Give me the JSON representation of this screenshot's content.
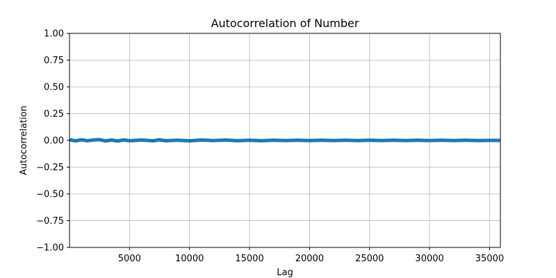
{
  "chart_data": {
    "type": "line",
    "title": "Autocorrelation of Number",
    "xlabel": "Lag",
    "ylabel": "Autocorrelation",
    "xlim": [
      1,
      35900
    ],
    "ylim": [
      -1.0,
      1.0
    ],
    "xticks": [
      5000,
      10000,
      15000,
      20000,
      25000,
      30000,
      35000
    ],
    "yticks": [
      1.0,
      0.75,
      0.5,
      0.25,
      0.0,
      -0.25,
      -0.5,
      -0.75,
      -1.0
    ],
    "xtick_labels": [
      "5000",
      "10000",
      "15000",
      "20000",
      "25000",
      "30000",
      "35000"
    ],
    "ytick_labels": [
      "1.00",
      "0.75",
      "0.50",
      "0.25",
      "0.00",
      "−0.25",
      "−0.50",
      "−0.75",
      "−1.00"
    ],
    "grid": true,
    "series": [
      {
        "color": "#1f77b4",
        "x": [
          1,
          500,
          1000,
          1500,
          2000,
          2500,
          3000,
          3500,
          4000,
          4500,
          5000,
          6000,
          7000,
          7500,
          8000,
          9000,
          10000,
          11000,
          12000,
          13000,
          14000,
          15000,
          16000,
          17000,
          18000,
          19000,
          20000,
          21000,
          22000,
          23000,
          24000,
          25000,
          26000,
          27000,
          28000,
          29000,
          30000,
          31000,
          32000,
          33000,
          34000,
          35000,
          35900
        ],
        "y": [
          0.006,
          -0.004,
          0.005,
          -0.003,
          0.004,
          0.007,
          -0.005,
          0.003,
          -0.006,
          0.004,
          -0.003,
          0.003,
          -0.004,
          0.006,
          -0.003,
          0.002,
          -0.004,
          0.003,
          -0.002,
          0.003,
          -0.003,
          0.002,
          -0.003,
          0.002,
          -0.002,
          0.002,
          -0.002,
          0.002,
          -0.002,
          0.001,
          -0.002,
          0.001,
          -0.001,
          0.001,
          -0.001,
          0.001,
          -0.001,
          0.001,
          -0.001,
          0.001,
          -0.001,
          0.0,
          0.0
        ]
      }
    ]
  }
}
